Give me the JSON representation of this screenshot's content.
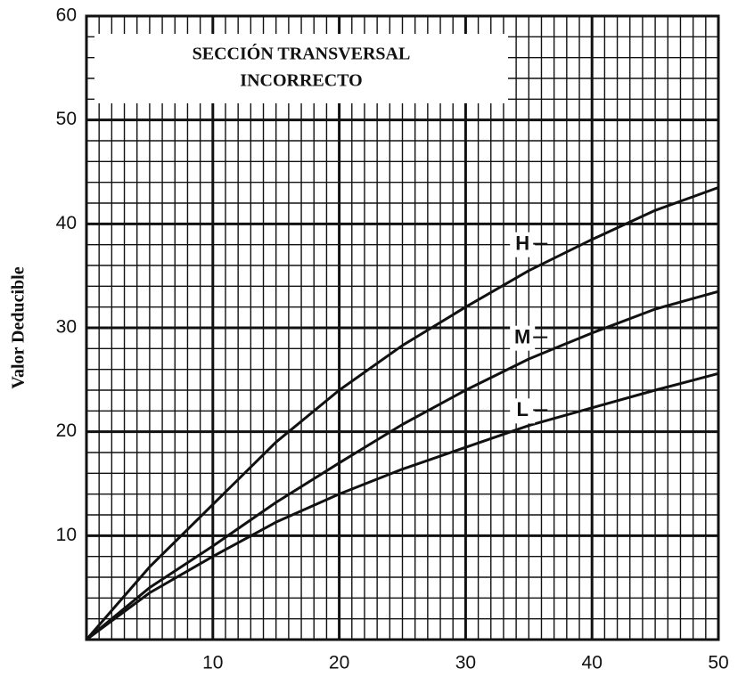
{
  "chart_data": {
    "type": "line",
    "title": [
      "SECCIÓN TRANSVERSAL",
      "INCORRECTO"
    ],
    "y_label": "Valor Deducible",
    "x": [
      0,
      5,
      10,
      15,
      20,
      25,
      30,
      35,
      40,
      45,
      50
    ],
    "series": [
      {
        "name": "H",
        "color": "#111111",
        "values": [
          0,
          7,
          13,
          19,
          24,
          28.3,
          32,
          35.5,
          38.5,
          41.3,
          43.5
        ]
      },
      {
        "name": "M",
        "color": "#111111",
        "values": [
          0,
          5,
          9,
          13.2,
          17,
          20.7,
          24,
          27,
          29.5,
          31.8,
          33.5
        ]
      },
      {
        "name": "L",
        "color": "#111111",
        "values": [
          0,
          4.5,
          8,
          11.3,
          14,
          16.4,
          18.5,
          20.6,
          22.3,
          24,
          25.6
        ]
      }
    ],
    "xlim": [
      0,
      50
    ],
    "xticks": [
      10,
      20,
      30,
      40,
      50
    ],
    "ylim": [
      0,
      60
    ],
    "yticks": [
      10,
      20,
      30,
      40,
      50,
      60
    ],
    "grid": true
  }
}
